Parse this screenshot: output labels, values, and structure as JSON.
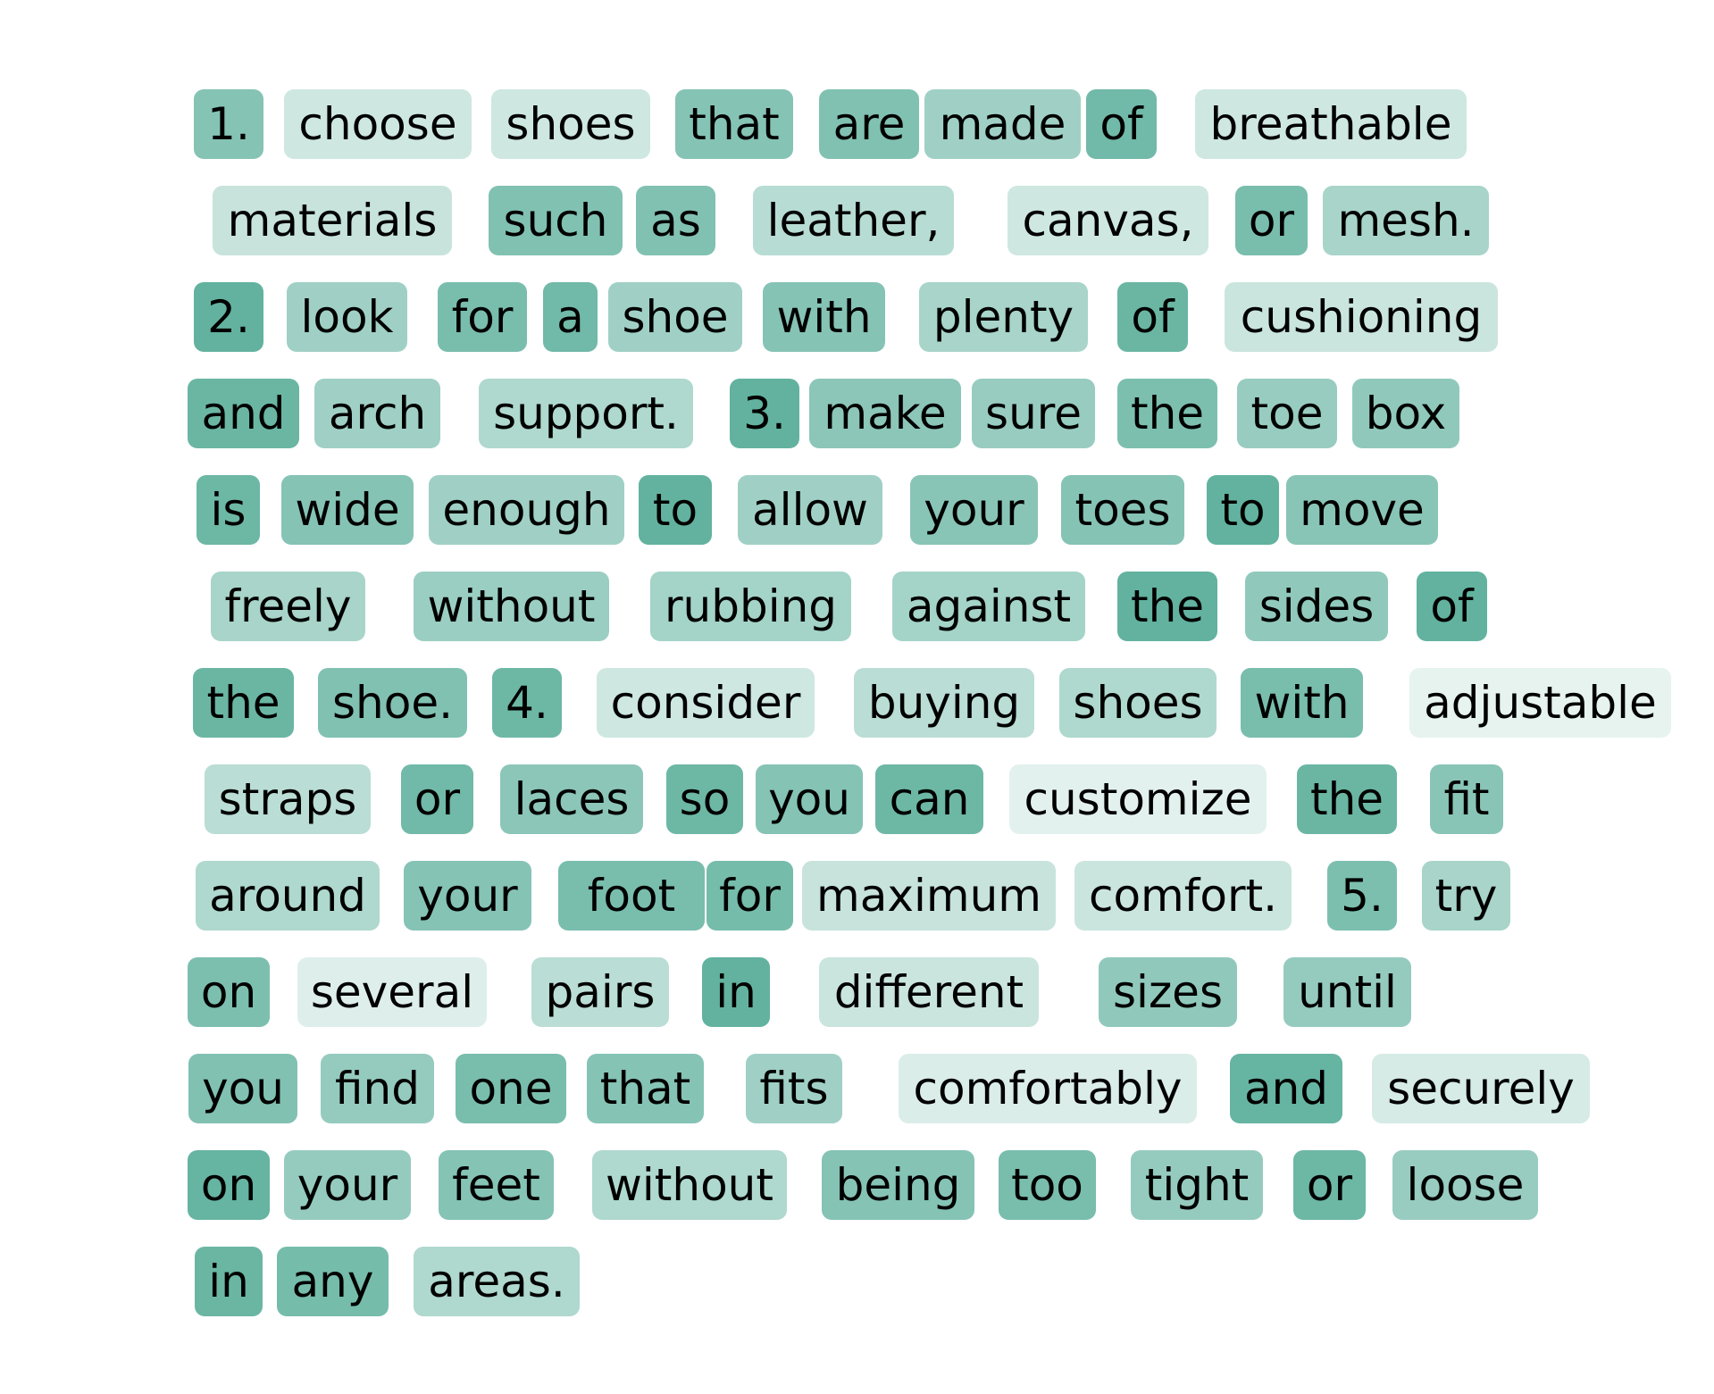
{
  "heatmap": {
    "base_color": "#5aae9a",
    "tokens": [
      {
        "text": "1.",
        "w": 0.72
      },
      {
        "text": "choose",
        "w": 0.25
      },
      {
        "text": "shoes",
        "w": 0.25
      },
      {
        "text": "that",
        "w": 0.72
      },
      {
        "text": "are",
        "w": 0.75
      },
      {
        "text": "made",
        "w": 0.55
      },
      {
        "text": "of",
        "w": 0.85
      },
      {
        "text": "breathable",
        "w": 0.25
      },
      {
        "text": "materials",
        "w": 0.3
      },
      {
        "text": "such",
        "w": 0.75
      },
      {
        "text": "as",
        "w": 0.75
      },
      {
        "text": "leather,",
        "w": 0.4
      },
      {
        "text": "canvas,",
        "w": 0.25
      },
      {
        "text": "or",
        "w": 0.8
      },
      {
        "text": "mesh.",
        "w": 0.5
      },
      {
        "text": "2.",
        "w": 0.95
      },
      {
        "text": "look",
        "w": 0.55
      },
      {
        "text": "for",
        "w": 0.8
      },
      {
        "text": "a",
        "w": 0.85
      },
      {
        "text": "shoe",
        "w": 0.55
      },
      {
        "text": "with",
        "w": 0.72
      },
      {
        "text": "plenty",
        "w": 0.5
      },
      {
        "text": "of",
        "w": 0.9
      },
      {
        "text": "cushioning",
        "w": 0.28
      },
      {
        "text": "and",
        "w": 0.9
      },
      {
        "text": "arch",
        "w": 0.55
      },
      {
        "text": "support.",
        "w": 0.45
      },
      {
        "text": "3.",
        "w": 0.95
      },
      {
        "text": "make",
        "w": 0.68
      },
      {
        "text": "sure",
        "w": 0.6
      },
      {
        "text": "the",
        "w": 0.78
      },
      {
        "text": "toe",
        "w": 0.6
      },
      {
        "text": "box",
        "w": 0.65
      },
      {
        "text": "is",
        "w": 0.88
      },
      {
        "text": "wide",
        "w": 0.72
      },
      {
        "text": "enough",
        "w": 0.55
      },
      {
        "text": "to",
        "w": 0.95
      },
      {
        "text": "allow",
        "w": 0.55
      },
      {
        "text": "your",
        "w": 0.7
      },
      {
        "text": "toes",
        "w": 0.72
      },
      {
        "text": "to",
        "w": 0.95
      },
      {
        "text": "move",
        "w": 0.7
      },
      {
        "text": "freely",
        "w": 0.5
      },
      {
        "text": "without",
        "w": 0.58
      },
      {
        "text": "rubbing",
        "w": 0.52
      },
      {
        "text": "against",
        "w": 0.52
      },
      {
        "text": "the",
        "w": 0.95
      },
      {
        "text": "sides",
        "w": 0.65
      },
      {
        "text": "of",
        "w": 0.95
      },
      {
        "text": "the",
        "w": 0.9
      },
      {
        "text": "shoe.",
        "w": 0.75
      },
      {
        "text": "4.",
        "w": 0.88
      },
      {
        "text": "consider",
        "w": 0.25
      },
      {
        "text": "buying",
        "w": 0.38
      },
      {
        "text": "shoes",
        "w": 0.45
      },
      {
        "text": "with",
        "w": 0.8
      },
      {
        "text": "adjustable",
        "w": 0.1
      },
      {
        "text": "straps",
        "w": 0.38
      },
      {
        "text": "or",
        "w": 0.85
      },
      {
        "text": "laces",
        "w": 0.68
      },
      {
        "text": "so",
        "w": 0.88
      },
      {
        "text": "you",
        "w": 0.72
      },
      {
        "text": "can",
        "w": 0.88
      },
      {
        "text": "customize",
        "w": 0.12
      },
      {
        "text": "the",
        "w": 0.9
      },
      {
        "text": "fit",
        "w": 0.7
      },
      {
        "text": "around",
        "w": 0.45
      },
      {
        "text": "your",
        "w": 0.72
      },
      {
        "text": "foot",
        "w": 0.8
      },
      {
        "text": "for",
        "w": 0.82
      },
      {
        "text": "maximum",
        "w": 0.3
      },
      {
        "text": "comfort.",
        "w": 0.28
      },
      {
        "text": "5.",
        "w": 0.78
      },
      {
        "text": "try",
        "w": 0.5
      },
      {
        "text": "on",
        "w": 0.78
      },
      {
        "text": "several",
        "w": 0.15
      },
      {
        "text": "pairs",
        "w": 0.38
      },
      {
        "text": "in",
        "w": 0.95
      },
      {
        "text": "different",
        "w": 0.28
      },
      {
        "text": "sizes",
        "w": 0.65
      },
      {
        "text": "until",
        "w": 0.62
      },
      {
        "text": "you",
        "w": 0.75
      },
      {
        "text": "find",
        "w": 0.62
      },
      {
        "text": "one",
        "w": 0.8
      },
      {
        "text": "that",
        "w": 0.72
      },
      {
        "text": "fits",
        "w": 0.55
      },
      {
        "text": "comfortably",
        "w": 0.17
      },
      {
        "text": "and",
        "w": 0.92
      },
      {
        "text": "securely",
        "w": 0.2
      },
      {
        "text": "on",
        "w": 0.92
      },
      {
        "text": "your",
        "w": 0.62
      },
      {
        "text": "feet",
        "w": 0.72
      },
      {
        "text": "without",
        "w": 0.45
      },
      {
        "text": "being",
        "w": 0.72
      },
      {
        "text": "too",
        "w": 0.8
      },
      {
        "text": "tight",
        "w": 0.62
      },
      {
        "text": "or",
        "w": 0.88
      },
      {
        "text": "loose",
        "w": 0.6
      },
      {
        "text": "in",
        "w": 0.9
      },
      {
        "text": "any",
        "w": 0.82
      },
      {
        "text": "areas.",
        "w": 0.45
      }
    ]
  }
}
